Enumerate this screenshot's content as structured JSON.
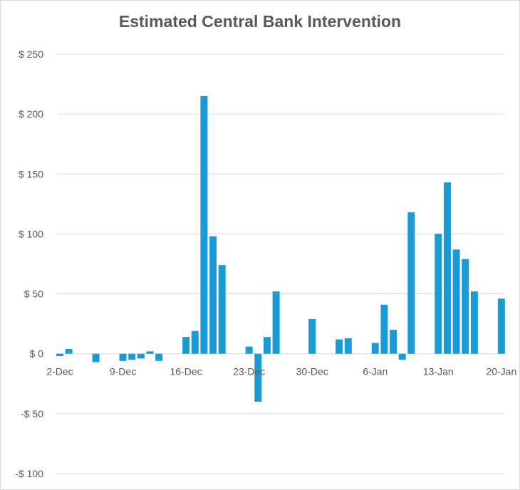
{
  "chart_data": {
    "type": "bar",
    "title": "Estimated Central Bank Intervention",
    "xlabel": "",
    "ylabel": "",
    "x_start": "2-Dec",
    "x_end": "20-Jan",
    "x_tick_labels": [
      "2-Dec",
      "9-Dec",
      "16-Dec",
      "23-Dec",
      "30-Dec",
      "6-Jan",
      "13-Jan",
      "20-Jan"
    ],
    "y_tick_labels": [
      "-$ 100",
      "-$ 50",
      "$ 0",
      "$ 50",
      "$ 100",
      "$ 150",
      "$ 200",
      "$ 250"
    ],
    "y_ticks": [
      -100,
      -50,
      0,
      50,
      100,
      150,
      200,
      250
    ],
    "ylim": [
      -100,
      250
    ],
    "grid": true,
    "legend": "none",
    "bar_color": "#1a9bd7",
    "categories": [
      "2-Dec",
      "3-Dec",
      "4-Dec",
      "5-Dec",
      "6-Dec",
      "7-Dec",
      "8-Dec",
      "9-Dec",
      "10-Dec",
      "11-Dec",
      "12-Dec",
      "13-Dec",
      "14-Dec",
      "15-Dec",
      "16-Dec",
      "17-Dec",
      "18-Dec",
      "19-Dec",
      "20-Dec",
      "21-Dec",
      "22-Dec",
      "23-Dec",
      "24-Dec",
      "25-Dec",
      "26-Dec",
      "27-Dec",
      "28-Dec",
      "29-Dec",
      "30-Dec",
      "31-Dec",
      "1-Jan",
      "2-Jan",
      "3-Jan",
      "4-Jan",
      "5-Jan",
      "6-Jan",
      "7-Jan",
      "8-Jan",
      "9-Jan",
      "10-Jan",
      "11-Jan",
      "12-Jan",
      "13-Jan",
      "14-Jan",
      "15-Jan",
      "16-Jan",
      "17-Jan",
      "18-Jan",
      "19-Jan",
      "20-Jan"
    ],
    "values": [
      -2,
      4,
      0,
      0,
      -7,
      0,
      0,
      -6,
      -5,
      -4,
      2,
      -6,
      0,
      0,
      14,
      19,
      215,
      98,
      74,
      0,
      0,
      6,
      -40,
      14,
      52,
      0,
      0,
      0,
      29,
      0,
      0,
      12,
      13,
      0,
      0,
      9,
      41,
      20,
      -5,
      118,
      0,
      0,
      100,
      143,
      87,
      79,
      52,
      0,
      0,
      46
    ]
  }
}
